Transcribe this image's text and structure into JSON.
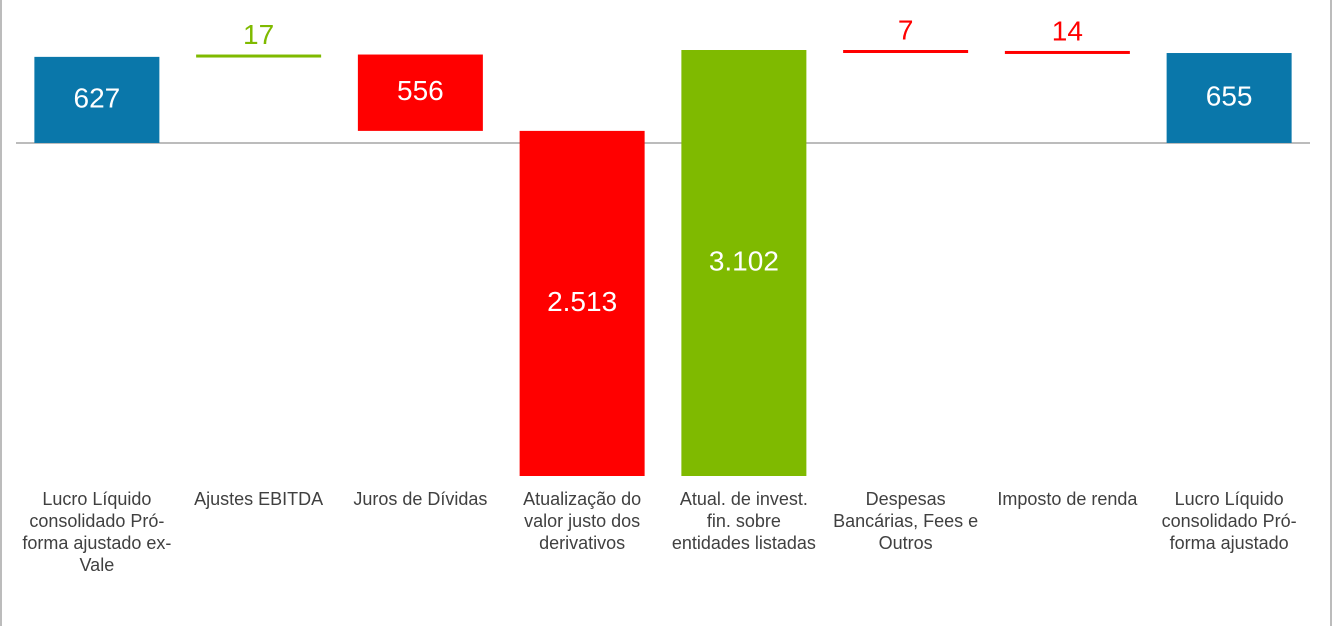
{
  "chart_data": {
    "type": "waterfall",
    "categories": [
      "Lucro Líquido consolidado Pró-forma ajustado ex-Vale",
      "Ajustes EBITDA",
      "Juros de Dívidas",
      "Atualização do valor justo dos derivativos",
      "Atual. de invest. fin. sobre entidades listadas",
      "Despesas Bancárias, Fees e Outros",
      "Imposto de renda",
      "Lucro Líquido consolidado Pró-forma ajustado"
    ],
    "values": [
      627,
      17,
      -556,
      -2513,
      3102,
      -7,
      -14,
      655
    ],
    "value_labels": [
      "627",
      "17",
      "556",
      "2.513",
      "3.102",
      "7",
      "14",
      "655"
    ],
    "measure": [
      "absolute",
      "relative",
      "relative",
      "relative",
      "relative",
      "relative",
      "relative",
      "total"
    ],
    "colors": [
      "#0a77aa",
      "#7fba00",
      "#ff0000",
      "#ff0000",
      "#7fba00",
      "#ff0000",
      "#ff0000",
      "#0a77aa"
    ]
  }
}
